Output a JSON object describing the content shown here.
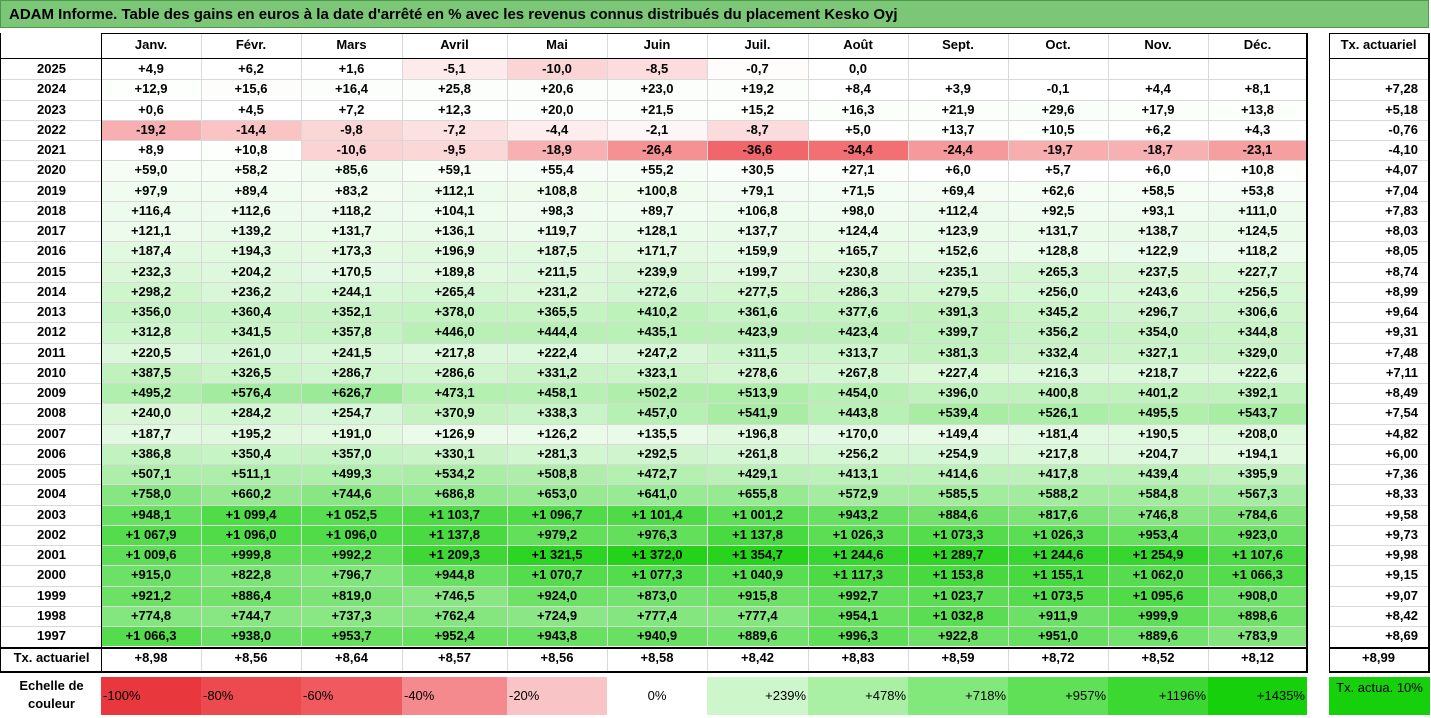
{
  "title": "ADAM Informe. Table des gains en euros à la date d'arrêté en % avec les revenus connus distribués du placement Kesko Oyj",
  "chart_data": {
    "type": "table",
    "months": [
      "Janv.",
      "Févr.",
      "Mars",
      "Avril",
      "Mai",
      "Juin",
      "Juil.",
      "Août",
      "Sept.",
      "Oct.",
      "Nov.",
      "Déc."
    ],
    "tx_header": "Tx. actuariel",
    "rows": [
      {
        "year": "2025",
        "values": [
          "+4,9",
          "+6,2",
          "+1,6",
          "-5,1",
          "-10,0",
          "-8,5",
          "-0,7",
          "0,0",
          "",
          "",
          "",
          ""
        ],
        "tx": ""
      },
      {
        "year": "2024",
        "values": [
          "+12,9",
          "+15,6",
          "+16,4",
          "+25,8",
          "+20,6",
          "+23,0",
          "+19,2",
          "+8,4",
          "+3,9",
          "-0,1",
          "+4,4",
          "+8,1"
        ],
        "tx": "+7,28"
      },
      {
        "year": "2023",
        "values": [
          "+0,6",
          "+4,5",
          "+7,2",
          "+12,3",
          "+20,0",
          "+21,5",
          "+15,2",
          "+16,3",
          "+21,9",
          "+29,6",
          "+17,9",
          "+13,8"
        ],
        "tx": "+5,18"
      },
      {
        "year": "2022",
        "values": [
          "-19,2",
          "-14,4",
          "-9,8",
          "-7,2",
          "-4,4",
          "-2,1",
          "-8,7",
          "+5,0",
          "+13,7",
          "+10,5",
          "+6,2",
          "+4,3"
        ],
        "tx": "-0,76"
      },
      {
        "year": "2021",
        "values": [
          "+8,9",
          "+10,8",
          "-10,6",
          "-9,5",
          "-18,9",
          "-26,4",
          "-36,6",
          "-34,4",
          "-24,4",
          "-19,7",
          "-18,7",
          "-23,1"
        ],
        "tx": "-4,10"
      },
      {
        "year": "2020",
        "values": [
          "+59,0",
          "+58,2",
          "+85,6",
          "+59,1",
          "+55,4",
          "+55,2",
          "+30,5",
          "+27,1",
          "+6,0",
          "+5,7",
          "+6,0",
          "+10,8"
        ],
        "tx": "+4,07"
      },
      {
        "year": "2019",
        "values": [
          "+97,9",
          "+89,4",
          "+83,2",
          "+112,1",
          "+108,8",
          "+100,8",
          "+79,1",
          "+71,5",
          "+69,4",
          "+62,6",
          "+58,5",
          "+53,8"
        ],
        "tx": "+7,04"
      },
      {
        "year": "2018",
        "values": [
          "+116,4",
          "+112,6",
          "+118,2",
          "+104,1",
          "+98,3",
          "+89,7",
          "+106,8",
          "+98,0",
          "+112,4",
          "+92,5",
          "+93,1",
          "+111,0"
        ],
        "tx": "+7,83"
      },
      {
        "year": "2017",
        "values": [
          "+121,1",
          "+139,2",
          "+131,7",
          "+136,1",
          "+119,7",
          "+128,1",
          "+137,7",
          "+124,4",
          "+123,9",
          "+131,7",
          "+138,7",
          "+124,5"
        ],
        "tx": "+8,03"
      },
      {
        "year": "2016",
        "values": [
          "+187,4",
          "+194,3",
          "+173,3",
          "+196,9",
          "+187,5",
          "+171,7",
          "+159,9",
          "+165,7",
          "+152,6",
          "+128,8",
          "+122,9",
          "+118,2"
        ],
        "tx": "+8,05"
      },
      {
        "year": "2015",
        "values": [
          "+232,3",
          "+204,2",
          "+170,5",
          "+189,8",
          "+211,5",
          "+239,9",
          "+199,7",
          "+230,8",
          "+235,1",
          "+265,3",
          "+237,5",
          "+227,7"
        ],
        "tx": "+8,74"
      },
      {
        "year": "2014",
        "values": [
          "+298,2",
          "+236,2",
          "+244,1",
          "+265,4",
          "+231,2",
          "+272,6",
          "+277,5",
          "+286,3",
          "+279,5",
          "+256,0",
          "+243,6",
          "+256,5"
        ],
        "tx": "+8,99"
      },
      {
        "year": "2013",
        "values": [
          "+356,0",
          "+360,4",
          "+352,1",
          "+378,0",
          "+365,5",
          "+410,2",
          "+361,6",
          "+377,6",
          "+391,3",
          "+345,2",
          "+296,7",
          "+306,6"
        ],
        "tx": "+9,64"
      },
      {
        "year": "2012",
        "values": [
          "+312,8",
          "+341,5",
          "+357,8",
          "+446,0",
          "+444,4",
          "+435,1",
          "+423,9",
          "+423,4",
          "+399,7",
          "+356,2",
          "+354,0",
          "+344,8"
        ],
        "tx": "+9,31"
      },
      {
        "year": "2011",
        "values": [
          "+220,5",
          "+261,0",
          "+241,5",
          "+217,8",
          "+222,4",
          "+247,2",
          "+311,5",
          "+313,7",
          "+381,3",
          "+332,4",
          "+327,1",
          "+329,0"
        ],
        "tx": "+7,48"
      },
      {
        "year": "2010",
        "values": [
          "+387,5",
          "+326,5",
          "+286,7",
          "+286,6",
          "+331,2",
          "+323,1",
          "+278,6",
          "+267,8",
          "+227,4",
          "+216,3",
          "+218,7",
          "+222,6"
        ],
        "tx": "+7,11"
      },
      {
        "year": "2009",
        "values": [
          "+495,2",
          "+576,4",
          "+626,7",
          "+473,1",
          "+458,1",
          "+502,2",
          "+513,9",
          "+454,0",
          "+396,0",
          "+400,8",
          "+401,2",
          "+392,1"
        ],
        "tx": "+8,49"
      },
      {
        "year": "2008",
        "values": [
          "+240,0",
          "+284,2",
          "+254,7",
          "+370,9",
          "+338,3",
          "+457,0",
          "+541,9",
          "+443,8",
          "+539,4",
          "+526,1",
          "+495,5",
          "+543,7"
        ],
        "tx": "+7,54"
      },
      {
        "year": "2007",
        "values": [
          "+187,7",
          "+195,2",
          "+191,0",
          "+126,9",
          "+126,2",
          "+135,5",
          "+196,8",
          "+170,0",
          "+149,4",
          "+181,4",
          "+190,5",
          "+208,0"
        ],
        "tx": "+4,82"
      },
      {
        "year": "2006",
        "values": [
          "+386,8",
          "+350,4",
          "+357,0",
          "+330,1",
          "+281,3",
          "+292,5",
          "+261,8",
          "+256,2",
          "+254,9",
          "+217,8",
          "+204,7",
          "+194,1"
        ],
        "tx": "+6,00"
      },
      {
        "year": "2005",
        "values": [
          "+507,1",
          "+511,1",
          "+499,3",
          "+534,2",
          "+508,8",
          "+472,7",
          "+429,1",
          "+413,1",
          "+414,6",
          "+417,8",
          "+439,4",
          "+395,9"
        ],
        "tx": "+7,36"
      },
      {
        "year": "2004",
        "values": [
          "+758,0",
          "+660,2",
          "+744,6",
          "+686,8",
          "+653,0",
          "+641,0",
          "+655,8",
          "+572,9",
          "+585,5",
          "+588,2",
          "+584,8",
          "+567,3"
        ],
        "tx": "+8,33"
      },
      {
        "year": "2003",
        "values": [
          "+948,1",
          "+1 099,4",
          "+1 052,5",
          "+1 103,7",
          "+1 096,7",
          "+1 101,4",
          "+1 001,2",
          "+943,2",
          "+884,6",
          "+817,6",
          "+746,8",
          "+784,6"
        ],
        "tx": "+9,58"
      },
      {
        "year": "2002",
        "values": [
          "+1 067,9",
          "+1 096,0",
          "+1 096,0",
          "+1 137,8",
          "+979,2",
          "+976,3",
          "+1 137,8",
          "+1 026,3",
          "+1 073,3",
          "+1 026,3",
          "+953,4",
          "+923,0"
        ],
        "tx": "+9,73"
      },
      {
        "year": "2001",
        "values": [
          "+1 009,6",
          "+999,8",
          "+992,2",
          "+1 209,3",
          "+1 321,5",
          "+1 372,0",
          "+1 354,7",
          "+1 244,6",
          "+1 289,7",
          "+1 244,6",
          "+1 254,9",
          "+1 107,6"
        ],
        "tx": "+9,98"
      },
      {
        "year": "2000",
        "values": [
          "+915,0",
          "+822,8",
          "+796,7",
          "+944,8",
          "+1 070,7",
          "+1 077,3",
          "+1 040,9",
          "+1 117,3",
          "+1 153,8",
          "+1 155,1",
          "+1 062,0",
          "+1 066,3"
        ],
        "tx": "+9,15"
      },
      {
        "year": "1999",
        "values": [
          "+921,2",
          "+886,4",
          "+819,0",
          "+746,5",
          "+924,0",
          "+873,0",
          "+915,8",
          "+992,7",
          "+1 023,7",
          "+1 073,5",
          "+1 095,6",
          "+908,0"
        ],
        "tx": "+9,07"
      },
      {
        "year": "1998",
        "values": [
          "+774,8",
          "+744,7",
          "+737,3",
          "+762,4",
          "+724,9",
          "+777,4",
          "+777,4",
          "+954,1",
          "+1 032,8",
          "+911,9",
          "+999,9",
          "+898,6"
        ],
        "tx": "+8,42"
      },
      {
        "year": "1997",
        "values": [
          "+1 066,3",
          "+938,0",
          "+953,7",
          "+952,4",
          "+943,8",
          "+940,9",
          "+889,6",
          "+996,3",
          "+922,8",
          "+951,0",
          "+889,6",
          "+783,9"
        ],
        "tx": "+8,69"
      }
    ],
    "footer": {
      "label": "Tx. actuariel",
      "values": [
        "+8,98",
        "+8,56",
        "+8,64",
        "+8,57",
        "+8,56",
        "+8,58",
        "+8,42",
        "+8,83",
        "+8,59",
        "+8,72",
        "+8,52",
        "+8,12"
      ],
      "tx": "+8,99"
    },
    "scale": {
      "label": "Echelle de couleur",
      "steps": [
        {
          "label": "-100%",
          "color": "#e8383d"
        },
        {
          "label": "-80%",
          "color": "#ec4a4f"
        },
        {
          "label": "-60%",
          "color": "#f05a5f"
        },
        {
          "label": "-40%",
          "color": "#f48a8d"
        },
        {
          "label": "-20%",
          "color": "#f9c4c5"
        },
        {
          "label": "0%",
          "color": "#ffffff"
        },
        {
          "label": "+239%",
          "color": "#cdf7cb"
        },
        {
          "label": "+478%",
          "color": "#a9f0a4"
        },
        {
          "label": "+718%",
          "color": "#83e87c"
        },
        {
          "label": "+957%",
          "color": "#5fe056"
        },
        {
          "label": "+1196%",
          "color": "#3cd832"
        },
        {
          "label": "+1435%",
          "color": "#16d00c"
        }
      ],
      "tx_label": "Tx. actua. 10%",
      "tx_color": "#16d00c"
    }
  }
}
